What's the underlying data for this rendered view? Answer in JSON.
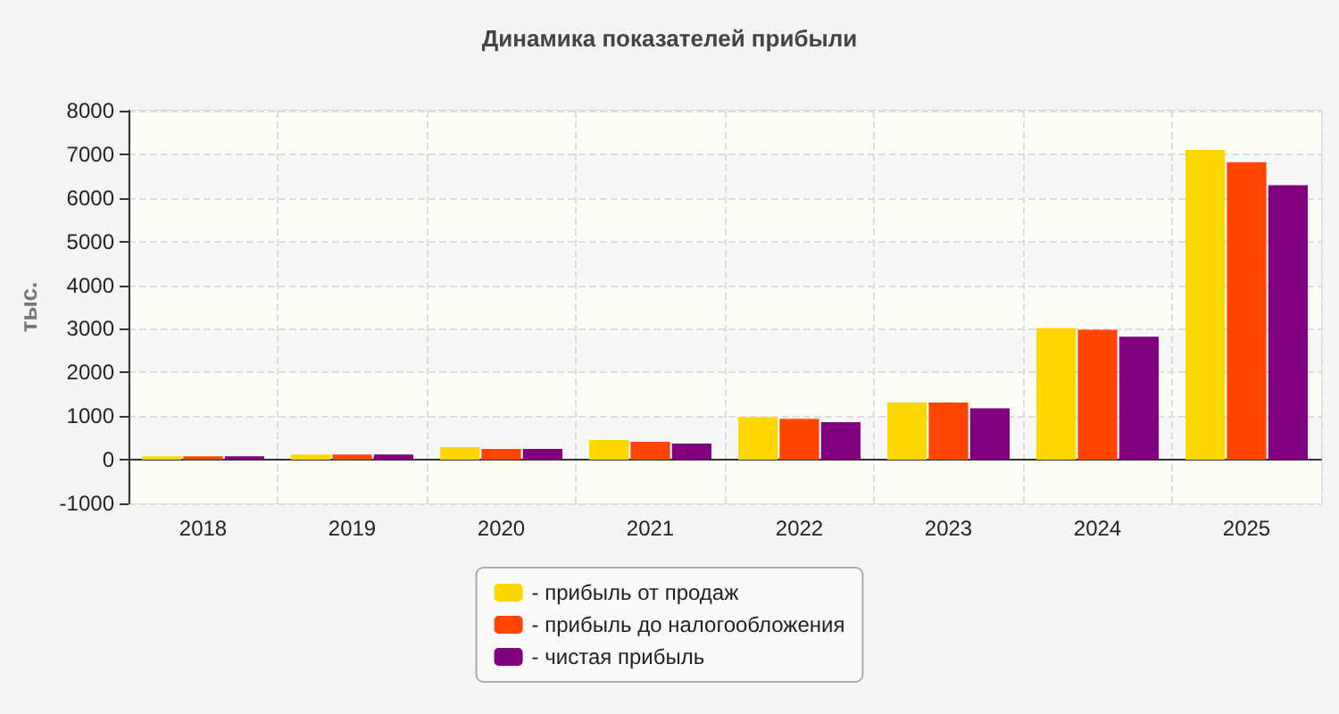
{
  "chart_data": {
    "type": "bar",
    "title": "Динамика показателей прибыли",
    "ylabel": "тыс.",
    "categories": [
      "2018",
      "2019",
      "2020",
      "2021",
      "2022",
      "2023",
      "2024",
      "2025"
    ],
    "series": [
      {
        "name": "- прибыль от продаж",
        "color": "#ffd700",
        "values": [
          80,
          120,
          290,
          450,
          980,
          1310,
          3020,
          7100
        ]
      },
      {
        "name": "- прибыль до налогообложения",
        "color": "#ff4500",
        "values": [
          80,
          120,
          250,
          410,
          940,
          1310,
          2980,
          6820
        ]
      },
      {
        "name": "- чистая прибыль",
        "color": "#800080",
        "values": [
          80,
          120,
          250,
          370,
          860,
          1180,
          2820,
          6290
        ]
      }
    ],
    "ylim": [
      -1000,
      8000
    ],
    "yticks": [
      -1000,
      0,
      1000,
      2000,
      3000,
      4000,
      5000,
      6000,
      7000,
      8000
    ],
    "grid": true,
    "legend": "bottom"
  }
}
